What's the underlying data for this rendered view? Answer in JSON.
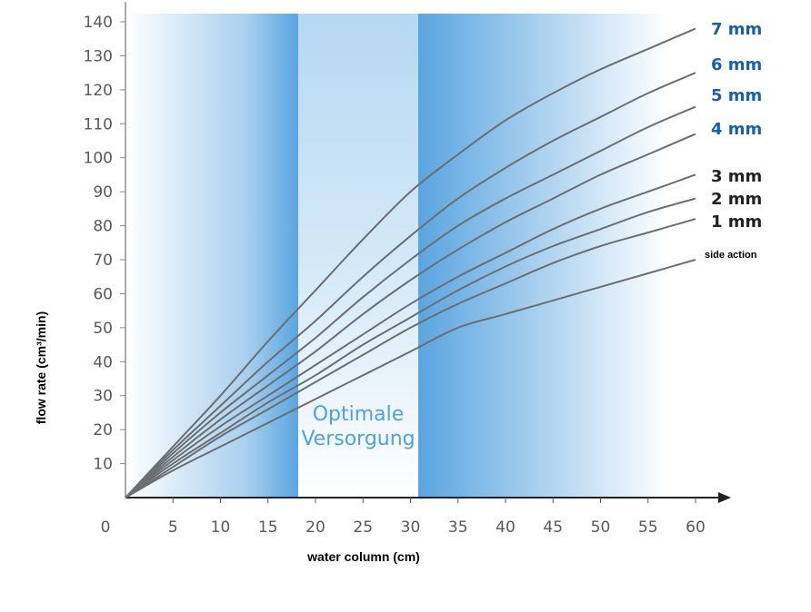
{
  "chart_data": {
    "type": "line",
    "title": "",
    "xlabel": "water column (cm)",
    "ylabel": "flow rate (cm³/min)",
    "xlim": [
      0,
      60
    ],
    "ylim": [
      0,
      140
    ],
    "x_ticks": [
      0,
      5,
      10,
      15,
      20,
      25,
      30,
      35,
      40,
      45,
      50,
      55,
      60
    ],
    "y_ticks": [
      10,
      20,
      30,
      40,
      50,
      60,
      70,
      80,
      90,
      100,
      110,
      120,
      130,
      140
    ],
    "x": [
      0,
      5,
      10,
      15,
      20,
      25,
      30,
      35,
      40,
      45,
      50,
      55,
      60
    ],
    "series": [
      {
        "name": "7 mm",
        "values": [
          0,
          15,
          30,
          46,
          61,
          76,
          90,
          101,
          111,
          119,
          126,
          132,
          138
        ],
        "color": "#1b5fa5"
      },
      {
        "name": "6 mm",
        "values": [
          0,
          14,
          27,
          40,
          52,
          65,
          77,
          88,
          97,
          105,
          112,
          119,
          125
        ],
        "color": "#1b5fa5"
      },
      {
        "name": "5 mm",
        "values": [
          0,
          13,
          25,
          36,
          47,
          59,
          70,
          80,
          88,
          95,
          102,
          109,
          115
        ],
        "color": "#1b5fa5"
      },
      {
        "name": "4 mm",
        "values": [
          0,
          12,
          23,
          33,
          43,
          54,
          64,
          73,
          81,
          88,
          95,
          101,
          107
        ],
        "color": "#1b5fa5"
      },
      {
        "name": "3 mm",
        "values": [
          0,
          11,
          21,
          30,
          39,
          48,
          57,
          65,
          72,
          79,
          85,
          90,
          95
        ],
        "color": "#222222"
      },
      {
        "name": "2 mm",
        "values": [
          0,
          10,
          19,
          28,
          36,
          45,
          53,
          61,
          68,
          74,
          79,
          84,
          88
        ],
        "color": "#222222"
      },
      {
        "name": "1 mm",
        "values": [
          0,
          9,
          18,
          26,
          34,
          42,
          50,
          57,
          63,
          69,
          74,
          78,
          82
        ],
        "color": "#222222"
      },
      {
        "name": "side action",
        "values": [
          0,
          8,
          15,
          22,
          29,
          36,
          43,
          50,
          54,
          58,
          62,
          66,
          70
        ],
        "color": "#000000"
      }
    ],
    "band": {
      "label_lines": [
        "Optimale",
        "Versorgung"
      ],
      "range": [
        19,
        31.5
      ]
    },
    "grid": false,
    "legend": "right, inline at line ends"
  }
}
